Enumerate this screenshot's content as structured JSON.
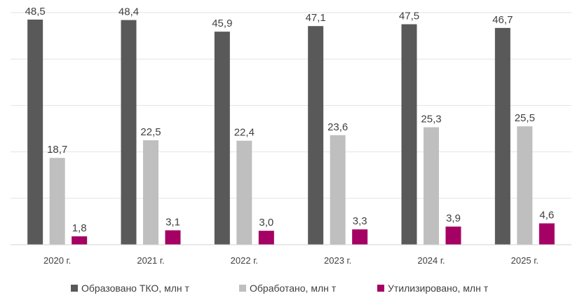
{
  "chart_data": {
    "type": "bar",
    "categories": [
      "2020 г.",
      "2021 г.",
      "2022 г.",
      "2023 г.",
      "2024 г.",
      "2025 г."
    ],
    "series": [
      {
        "name": "Образовано ТКО, млн т",
        "color": "#595959",
        "values": [
          48.5,
          48.4,
          45.9,
          47.1,
          47.5,
          46.7
        ],
        "labels": [
          "48,5",
          "48,4",
          "45,9",
          "47,1",
          "47,5",
          "46,7"
        ]
      },
      {
        "name": "Обработано, млн т",
        "color": "#bfbfbf",
        "values": [
          18.7,
          22.5,
          22.4,
          23.6,
          25.3,
          25.5
        ],
        "labels": [
          "18,7",
          "22,5",
          "22,4",
          "23,6",
          "25,3",
          "25,5"
        ]
      },
      {
        "name": "Утилизировано, млн т",
        "color": "#a50063",
        "values": [
          1.8,
          3.1,
          3.0,
          3.3,
          3.9,
          4.6
        ],
        "labels": [
          "1,8",
          "3,1",
          "3,0",
          "3,3",
          "3,9",
          "4,6"
        ]
      }
    ],
    "ylim": [
      0,
      50
    ],
    "grid": true,
    "legend": "bottom"
  }
}
